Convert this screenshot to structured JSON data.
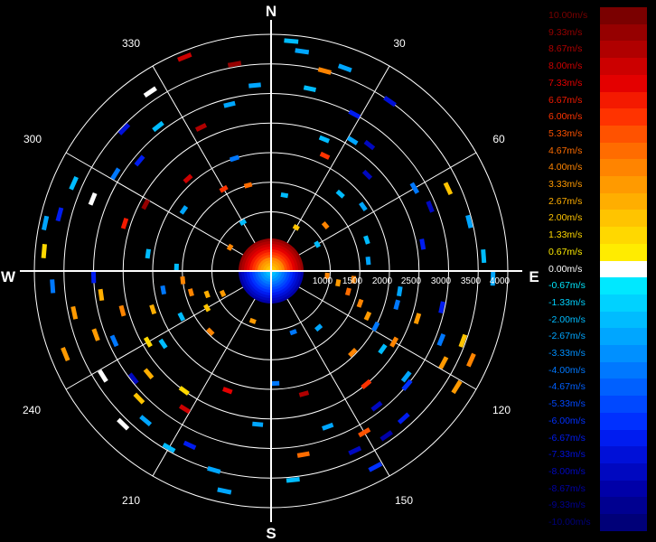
{
  "compass": {
    "north": "N",
    "south": "S",
    "east": "E",
    "west": "W"
  },
  "azimuth_labels": [
    "30",
    "60",
    "120",
    "150",
    "210",
    "240",
    "300",
    "330"
  ],
  "range_labels": [
    "1000",
    "1500",
    "2000",
    "2500",
    "3000",
    "3500",
    "4000"
  ],
  "chart_data": {
    "type": "polar-radar",
    "range_rings": [
      500,
      1000,
      1500,
      2000,
      2500,
      3000,
      3500,
      4000
    ],
    "radial_spokes_deg": [
      0,
      30,
      60,
      90,
      120,
      150,
      180,
      210,
      240,
      270,
      300,
      330
    ],
    "range_max": 4000,
    "legend": {
      "title": "",
      "entries": [
        {
          "label": "10.00m/s",
          "color": "#7a0000"
        },
        {
          "label": "9.33m/s",
          "color": "#960000"
        },
        {
          "label": "8.67m/s",
          "color": "#b00000"
        },
        {
          "label": "8.00m/s",
          "color": "#cc0000"
        },
        {
          "label": "7.33m/s",
          "color": "#e40000"
        },
        {
          "label": "6.67m/s",
          "color": "#f41a00"
        },
        {
          "label": "6.00m/s",
          "color": "#ff3300"
        },
        {
          "label": "5.33m/s",
          "color": "#ff5200"
        },
        {
          "label": "4.67m/s",
          "color": "#ff6c00"
        },
        {
          "label": "4.00m/s",
          "color": "#ff8400"
        },
        {
          "label": "3.33m/s",
          "color": "#ff9a00"
        },
        {
          "label": "2.67m/s",
          "color": "#ffae00"
        },
        {
          "label": "2.00m/s",
          "color": "#ffc400"
        },
        {
          "label": "1.33m/s",
          "color": "#ffd800"
        },
        {
          "label": "0.67m/s",
          "color": "#ffec00"
        },
        {
          "label": "0.00m/s",
          "color": "#ffffff"
        },
        {
          "label": "-0.67m/s",
          "color": "#00e8ff"
        },
        {
          "label": "-1.33m/s",
          "color": "#00d2ff"
        },
        {
          "label": "-2.00m/s",
          "color": "#00bcff"
        },
        {
          "label": "-2.67m/s",
          "color": "#00a6ff"
        },
        {
          "label": "-3.33m/s",
          "color": "#0090ff"
        },
        {
          "label": "-4.00m/s",
          "color": "#0078ff"
        },
        {
          "label": "-4.67m/s",
          "color": "#0060ff"
        },
        {
          "label": "-5.33m/s",
          "color": "#0048ff"
        },
        {
          "label": "-6.00m/s",
          "color": "#0030ff"
        },
        {
          "label": "-6.67m/s",
          "color": "#001cf0"
        },
        {
          "label": "-7.33m/s",
          "color": "#0010d8"
        },
        {
          "label": "-8.00m/s",
          "color": "#0008c0"
        },
        {
          "label": "-8.67m/s",
          "color": "#0000a8"
        },
        {
          "label": "-9.33m/s",
          "color": "#000090"
        },
        {
          "label": "-10.00m/s",
          "color": "#000078"
        }
      ]
    },
    "echoes": [
      {
        "az": 350,
        "r": 3550,
        "v": 9.3
      },
      {
        "az": 355,
        "r": 3150,
        "v": -2.7
      },
      {
        "az": 5,
        "r": 3900,
        "v": -2.0
      },
      {
        "az": 8,
        "r": 3750,
        "v": -2.7
      },
      {
        "az": 12,
        "r": 3150,
        "v": -2.0
      },
      {
        "az": 15,
        "r": 3500,
        "v": 4.0
      },
      {
        "az": 20,
        "r": 3650,
        "v": -2.7
      },
      {
        "az": 22,
        "r": 2400,
        "v": -2.0
      },
      {
        "az": 25,
        "r": 2150,
        "v": 6.0
      },
      {
        "az": 28,
        "r": 3000,
        "v": -6.7
      },
      {
        "az": 32,
        "r": 2600,
        "v": -2.7
      },
      {
        "az": 35,
        "r": 3500,
        "v": -7.3
      },
      {
        "az": 38,
        "r": 2700,
        "v": -8.0
      },
      {
        "az": 42,
        "r": 1750,
        "v": -2.0
      },
      {
        "az": 45,
        "r": 2300,
        "v": -8.0
      },
      {
        "az": 50,
        "r": 1200,
        "v": 4.0
      },
      {
        "az": 55,
        "r": 1900,
        "v": -2.7
      },
      {
        "az": 60,
        "r": 2800,
        "v": -4.0
      },
      {
        "az": 65,
        "r": 3300,
        "v": 2.0
      },
      {
        "az": 68,
        "r": 2900,
        "v": -8.0
      },
      {
        "az": 72,
        "r": 1700,
        "v": -2.0
      },
      {
        "az": 76,
        "r": 3450,
        "v": -2.7
      },
      {
        "az": 80,
        "r": 2600,
        "v": -6.7
      },
      {
        "az": 84,
        "r": 1650,
        "v": -2.7
      },
      {
        "az": 86,
        "r": 3600,
        "v": -2.0
      },
      {
        "az": 92,
        "r": 3750,
        "v": -2.7
      },
      {
        "az": 96,
        "r": 1400,
        "v": 4.0
      },
      {
        "az": 99,
        "r": 2200,
        "v": -2.7
      },
      {
        "az": 102,
        "r": 2950,
        "v": -6.7
      },
      {
        "az": 105,
        "r": 2200,
        "v": -4.0
      },
      {
        "az": 108,
        "r": 2600,
        "v": 3.3
      },
      {
        "az": 110,
        "r": 3450,
        "v": 2.0
      },
      {
        "az": 112,
        "r": 3100,
        "v": -4.0
      },
      {
        "az": 114,
        "r": 3700,
        "v": 4.0
      },
      {
        "az": 118,
        "r": 3300,
        "v": 3.3
      },
      {
        "az": 120,
        "r": 2400,
        "v": 4.0
      },
      {
        "az": 122,
        "r": 3700,
        "v": 3.3
      },
      {
        "az": 125,
        "r": 2300,
        "v": -2.0
      },
      {
        "az": 128,
        "r": 2900,
        "v": -2.7
      },
      {
        "az": 130,
        "r": 3000,
        "v": -6.0
      },
      {
        "az": 135,
        "r": 1950,
        "v": 4.0
      },
      {
        "az": 138,
        "r": 3350,
        "v": -6.7
      },
      {
        "az": 140,
        "r": 2500,
        "v": 6.0
      },
      {
        "az": 142,
        "r": 2900,
        "v": -8.0
      },
      {
        "az": 145,
        "r": 3400,
        "v": -8.7
      },
      {
        "az": 150,
        "r": 3150,
        "v": 5.3
      },
      {
        "az": 152,
        "r": 3750,
        "v": -6.0
      },
      {
        "az": 155,
        "r": 3350,
        "v": -8.0
      },
      {
        "az": 160,
        "r": 2800,
        "v": -2.7
      },
      {
        "az": 165,
        "r": 2150,
        "v": 8.7
      },
      {
        "az": 170,
        "r": 3150,
        "v": 4.7
      },
      {
        "az": 174,
        "r": 3550,
        "v": -2.0
      },
      {
        "az": 178,
        "r": 1900,
        "v": -4.0
      },
      {
        "az": 185,
        "r": 2600,
        "v": -2.7
      },
      {
        "az": 192,
        "r": 3800,
        "v": -2.7
      },
      {
        "az": 196,
        "r": 3500,
        "v": -2.7
      },
      {
        "az": 200,
        "r": 2150,
        "v": 7.3
      },
      {
        "az": 205,
        "r": 3250,
        "v": -6.7
      },
      {
        "az": 210,
        "r": 3450,
        "v": -2.0
      },
      {
        "az": 212,
        "r": 2750,
        "v": 8.0
      },
      {
        "az": 216,
        "r": 2500,
        "v": 1.3
      },
      {
        "az": 220,
        "r": 3300,
        "v": -2.7
      },
      {
        "az": 224,
        "r": 3600,
        "v": 0.0
      },
      {
        "az": 226,
        "r": 3100,
        "v": 2.0
      },
      {
        "az": 230,
        "r": 2700,
        "v": 2.7
      },
      {
        "az": 232,
        "r": 2950,
        "v": -8.0
      },
      {
        "az": 236,
        "r": 2200,
        "v": -2.0
      },
      {
        "az": 238,
        "r": 3350,
        "v": 0.0
      },
      {
        "az": 240,
        "r": 2400,
        "v": 1.3
      },
      {
        "az": 243,
        "r": 1700,
        "v": -2.0
      },
      {
        "az": 246,
        "r": 2900,
        "v": -4.0
      },
      {
        "az": 248,
        "r": 3750,
        "v": 3.3
      },
      {
        "az": 250,
        "r": 3150,
        "v": 3.3
      },
      {
        "az": 252,
        "r": 2100,
        "v": 2.7
      },
      {
        "az": 255,
        "r": 2600,
        "v": 4.0
      },
      {
        "az": 258,
        "r": 3400,
        "v": 3.3
      },
      {
        "az": 260,
        "r": 1850,
        "v": -4.0
      },
      {
        "az": 262,
        "r": 2900,
        "v": 2.7
      },
      {
        "az": 264,
        "r": 1500,
        "v": 4.0
      },
      {
        "az": 266,
        "r": 3700,
        "v": -4.0
      },
      {
        "az": 268,
        "r": 3000,
        "v": -6.7
      },
      {
        "az": 272,
        "r": 1600,
        "v": -2.0
      },
      {
        "az": 275,
        "r": 3850,
        "v": 1.3
      },
      {
        "az": 278,
        "r": 2100,
        "v": -2.0
      },
      {
        "az": 282,
        "r": 3900,
        "v": -2.7
      },
      {
        "az": 285,
        "r": 3700,
        "v": -6.7
      },
      {
        "az": 288,
        "r": 2600,
        "v": 6.7
      },
      {
        "az": 292,
        "r": 3250,
        "v": 0.0
      },
      {
        "az": 294,
        "r": 3650,
        "v": -2.0
      },
      {
        "az": 298,
        "r": 2400,
        "v": 9.3
      },
      {
        "az": 302,
        "r": 3100,
        "v": -4.0
      },
      {
        "az": 305,
        "r": 1800,
        "v": -2.7
      },
      {
        "az": 310,
        "r": 2900,
        "v": -6.7
      },
      {
        "az": 314,
        "r": 3450,
        "v": -7.3
      },
      {
        "az": 318,
        "r": 2100,
        "v": 8.0
      },
      {
        "az": 322,
        "r": 3100,
        "v": -2.0
      },
      {
        "az": 326,
        "r": 3650,
        "v": 0.0
      },
      {
        "az": 330,
        "r": 1600,
        "v": 6.0
      },
      {
        "az": 334,
        "r": 2700,
        "v": 8.7
      },
      {
        "az": 338,
        "r": 3900,
        "v": 8.0
      },
      {
        "az": 342,
        "r": 2000,
        "v": -4.0
      },
      {
        "az": 346,
        "r": 2900,
        "v": -2.7
      },
      {
        "az": 95,
        "r": 950,
        "v": 4.0
      },
      {
        "az": 100,
        "r": 1150,
        "v": 3.3
      },
      {
        "az": 105,
        "r": 1350,
        "v": 4.7
      },
      {
        "az": 110,
        "r": 1600,
        "v": 4.0
      },
      {
        "az": 115,
        "r": 1800,
        "v": 3.3
      },
      {
        "az": 118,
        "r": 2000,
        "v": -4.0
      },
      {
        "az": 245,
        "r": 900,
        "v": 3.3
      },
      {
        "az": 250,
        "r": 1150,
        "v": 2.7
      },
      {
        "az": 255,
        "r": 1400,
        "v": 4.0
      },
      {
        "az": 240,
        "r": 1250,
        "v": 2.0
      },
      {
        "az": 60,
        "r": 900,
        "v": -2.0
      },
      {
        "az": 30,
        "r": 850,
        "v": 2.0
      },
      {
        "az": 330,
        "r": 950,
        "v": -2.0
      },
      {
        "az": 300,
        "r": 800,
        "v": 4.0
      },
      {
        "az": 200,
        "r": 900,
        "v": 3.3
      },
      {
        "az": 160,
        "r": 1100,
        "v": -4.0
      },
      {
        "az": 140,
        "r": 1250,
        "v": -2.7
      },
      {
        "az": 225,
        "r": 1450,
        "v": 4.0
      },
      {
        "az": 10,
        "r": 1300,
        "v": -2.0
      },
      {
        "az": 345,
        "r": 1500,
        "v": 4.7
      }
    ]
  }
}
